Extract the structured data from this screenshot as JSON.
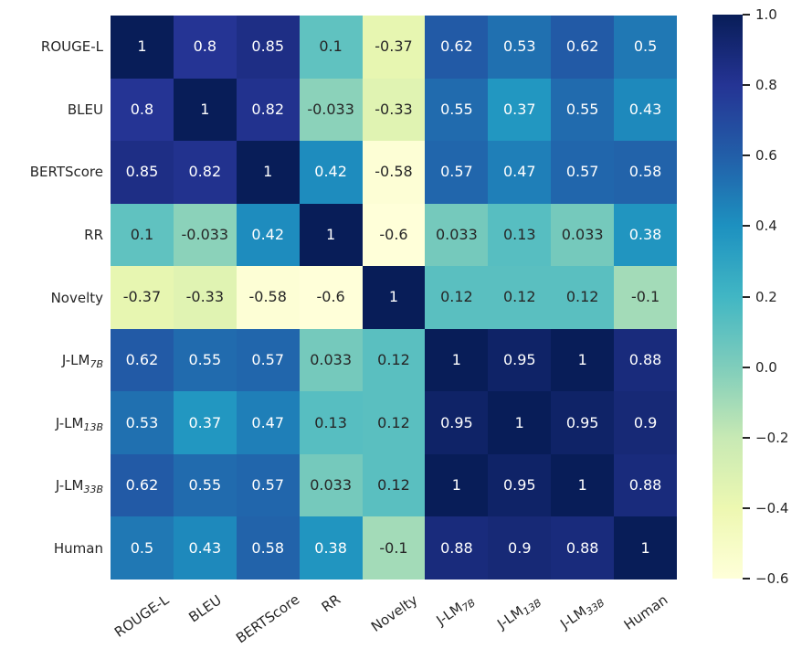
{
  "chart_data": {
    "type": "heatmap",
    "title": "",
    "xlabel": "",
    "ylabel": "",
    "categories": [
      {
        "text": "ROUGE-L",
        "sub": ""
      },
      {
        "text": "BLEU",
        "sub": ""
      },
      {
        "text": "BERTScore",
        "sub": ""
      },
      {
        "text": "RR",
        "sub": ""
      },
      {
        "text": "Novelty",
        "sub": ""
      },
      {
        "text": "J-LM",
        "sub": "7B"
      },
      {
        "text": "J-LM",
        "sub": "13B"
      },
      {
        "text": "J-LM",
        "sub": "33B"
      },
      {
        "text": "Human",
        "sub": ""
      }
    ],
    "matrix": [
      [
        1,
        0.8,
        0.85,
        0.1,
        -0.37,
        0.62,
        0.53,
        0.62,
        0.5
      ],
      [
        0.8,
        1,
        0.82,
        -0.033,
        -0.33,
        0.55,
        0.37,
        0.55,
        0.43
      ],
      [
        0.85,
        0.82,
        1,
        0.42,
        -0.58,
        0.57,
        0.47,
        0.57,
        0.58
      ],
      [
        0.1,
        -0.033,
        0.42,
        1,
        -0.6,
        0.033,
        0.13,
        0.033,
        0.38
      ],
      [
        -0.37,
        -0.33,
        -0.58,
        -0.6,
        1,
        0.12,
        0.12,
        0.12,
        -0.1
      ],
      [
        0.62,
        0.55,
        0.57,
        0.033,
        0.12,
        1,
        0.95,
        1,
        0.88
      ],
      [
        0.53,
        0.37,
        0.47,
        0.13,
        0.12,
        0.95,
        1,
        0.95,
        0.9
      ],
      [
        0.62,
        0.55,
        0.57,
        0.033,
        0.12,
        1,
        0.95,
        1,
        0.88
      ],
      [
        0.5,
        0.43,
        0.58,
        0.38,
        -0.1,
        0.88,
        0.9,
        0.88,
        1
      ]
    ],
    "vmin": -0.6,
    "vmax": 1.0,
    "grid": false,
    "annotations_shown": true,
    "colormap": {
      "name": "YlGnBu",
      "stops": [
        "#ffffd9",
        "#edf8b1",
        "#c7e9b4",
        "#7fcdbb",
        "#41b6c4",
        "#1d91c0",
        "#225ea8",
        "#253494",
        "#081d58"
      ]
    },
    "annotation_text_colors": {
      "on_dark": "#ffffff",
      "on_light": "#262626"
    },
    "colorbar": {
      "position": "right",
      "tick_labels": [
        "1.0",
        "0.8",
        "0.6",
        "0.4",
        "0.2",
        "0.0",
        "−0.2",
        "−0.4",
        "−0.6"
      ],
      "tick_values": [
        1.0,
        0.8,
        0.6,
        0.4,
        0.2,
        0.0,
        -0.2,
        -0.4,
        -0.6
      ]
    }
  }
}
